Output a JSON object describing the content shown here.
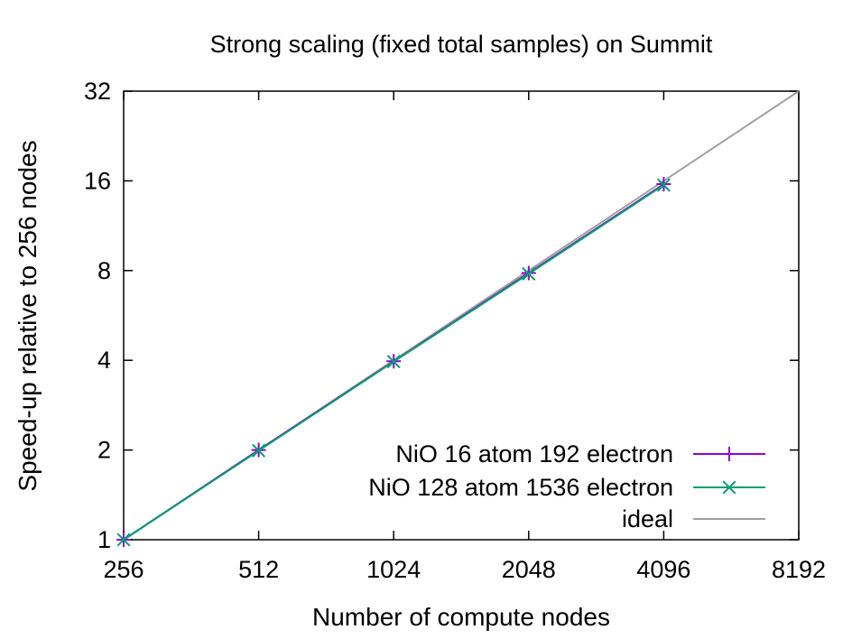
{
  "chart_data": {
    "type": "line",
    "title": "Strong scaling (fixed total samples) on Summit",
    "xlabel": "Number of compute nodes",
    "ylabel": "Speed-up relative to 256 nodes",
    "x_scale": "log2",
    "y_scale": "log2",
    "xlim": [
      256,
      8192
    ],
    "ylim": [
      1,
      32
    ],
    "x_ticks": [
      256,
      512,
      1024,
      2048,
      4096,
      8192
    ],
    "x_tick_labels": [
      "256",
      "512",
      "1024",
      "2048",
      "4096",
      "8192"
    ],
    "y_ticks": [
      1,
      2,
      4,
      8,
      16,
      32
    ],
    "y_tick_labels": [
      "1",
      "2",
      "4",
      "8",
      "16",
      "32"
    ],
    "grid": false,
    "legend_position": "bottom-right",
    "series": [
      {
        "name": "NiO 16 atom 192 electron",
        "color": "#9400d3",
        "marker": "plus",
        "x": [
          256,
          512,
          1024,
          2048,
          4096
        ],
        "y": [
          1.0,
          2.0,
          3.97,
          7.85,
          15.6
        ]
      },
      {
        "name": "NiO 128 atom 1536 electron",
        "color": "#009e73",
        "marker": "cross",
        "x": [
          256,
          512,
          1024,
          2048,
          4096
        ],
        "y": [
          1.0,
          1.99,
          3.96,
          7.8,
          15.5
        ]
      },
      {
        "name": "ideal",
        "color": "#a0a0a0",
        "marker": "none",
        "x": [
          256,
          8192
        ],
        "y": [
          1,
          32
        ]
      }
    ]
  }
}
